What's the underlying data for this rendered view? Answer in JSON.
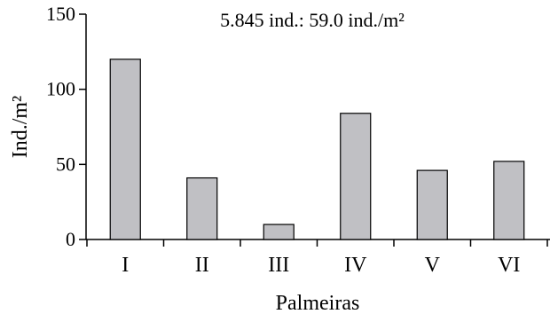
{
  "chart_data": {
    "type": "bar",
    "title": "5.845 ind.: 59.0 ind./m²",
    "xlabel": "Palmeiras",
    "ylabel": "Ind./m²",
    "categories": [
      "I",
      "II",
      "III",
      "IV",
      "V",
      "VI"
    ],
    "values": [
      120,
      41,
      10,
      84,
      46,
      52
    ],
    "ylim": [
      0,
      150
    ],
    "yticks": [
      "0",
      "50",
      "100",
      "150"
    ],
    "grid": false,
    "bar_color": "#c0c0c4",
    "bar_edge_color": "#000000"
  }
}
